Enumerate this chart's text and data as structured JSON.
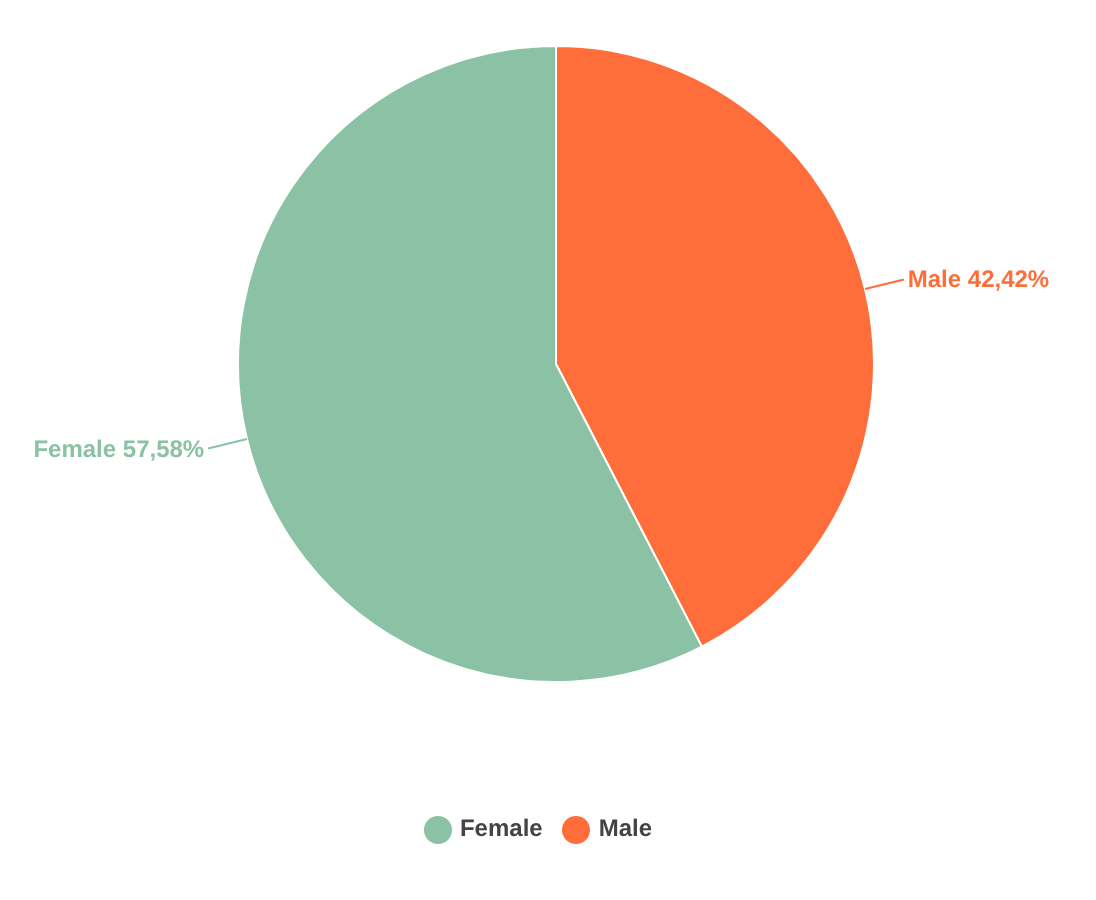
{
  "chart_data": {
    "type": "pie",
    "categories": [
      "Male",
      "Female"
    ],
    "values": [
      42.42,
      57.58
    ],
    "colors": [
      "#ff6d3a",
      "#8bc2a5"
    ],
    "value_labels": [
      "Male 42,42%",
      "Female 57,58%"
    ],
    "legend": "bottom"
  }
}
